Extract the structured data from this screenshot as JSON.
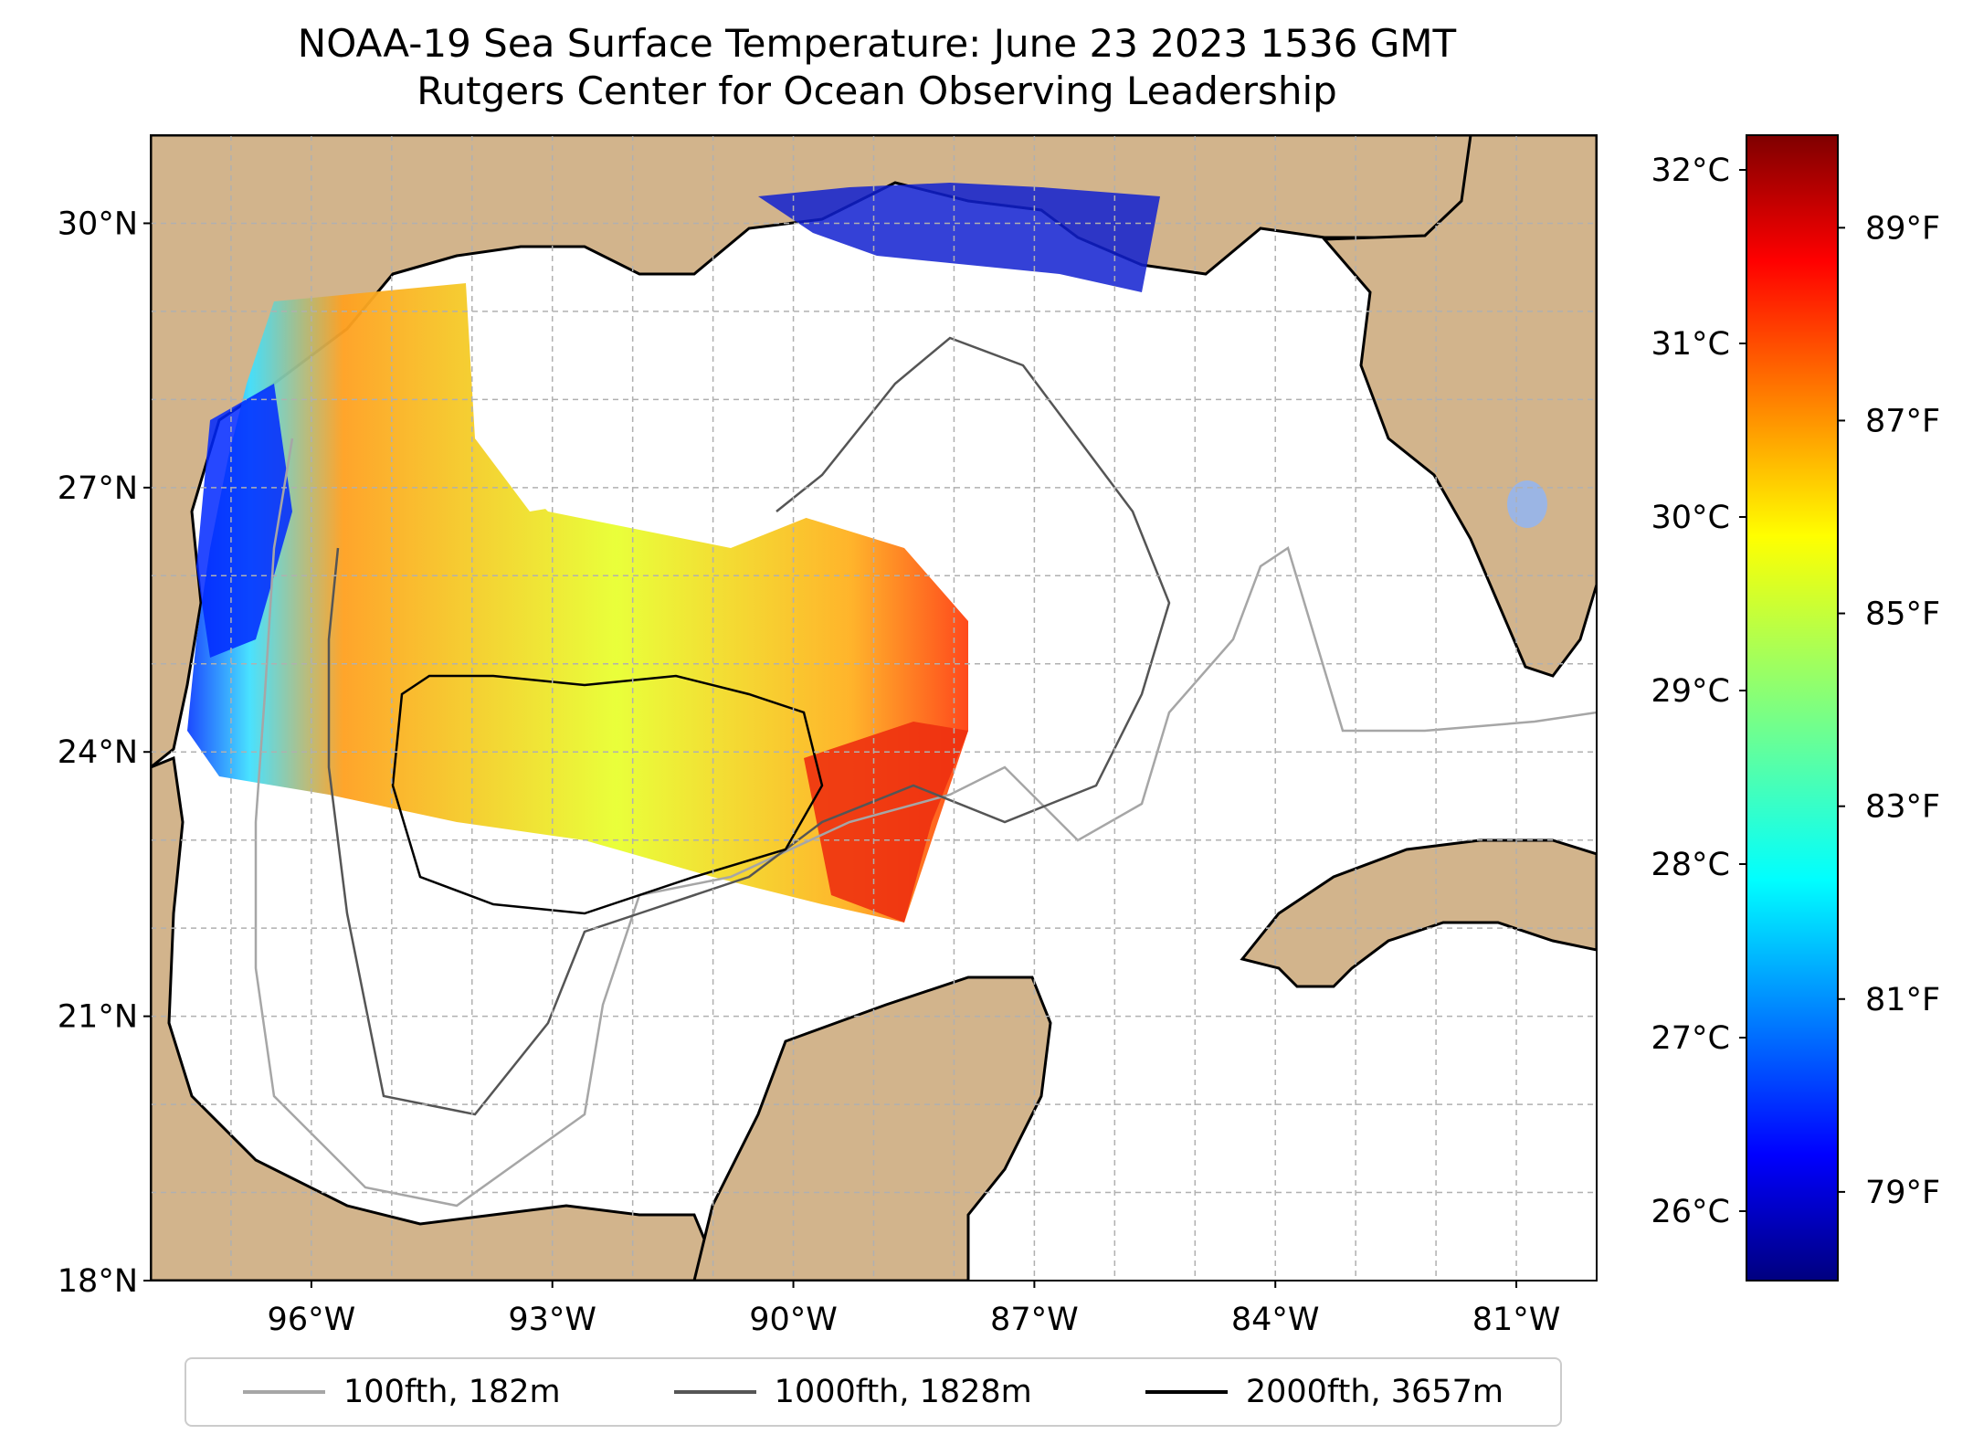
{
  "title": {
    "line1": "NOAA-19 Sea Surface Temperature: June 23 2023 1536 GMT",
    "line2": "Rutgers Center for Ocean Observing Leadership"
  },
  "map": {
    "lat_range": [
      18,
      31
    ],
    "lon_range": [
      -98,
      -80
    ],
    "lat_ticks": [
      "18°N",
      "21°N",
      "24°N",
      "27°N",
      "30°N"
    ],
    "lon_ticks": [
      "96°W",
      "93°W",
      "90°W",
      "87°W",
      "84°W",
      "81°W"
    ],
    "land_color": "#d2b48c",
    "lake_color": "#9bb5e4",
    "gridlines": true
  },
  "colorbar": {
    "colormap": "jet",
    "celsius_ticks": [
      "26°C",
      "27°C",
      "28°C",
      "29°C",
      "30°C",
      "31°C",
      "32°C"
    ],
    "fahrenheit_ticks": [
      "79°F",
      "81°F",
      "83°F",
      "85°F",
      "87°F",
      "89°F"
    ]
  },
  "legend": [
    {
      "label": "100fth, 182m",
      "color": "#a6a6a6"
    },
    {
      "label": "1000fth, 1828m",
      "color": "#555555"
    },
    {
      "label": "2000fth, 3657m",
      "color": "#000000"
    }
  ]
}
